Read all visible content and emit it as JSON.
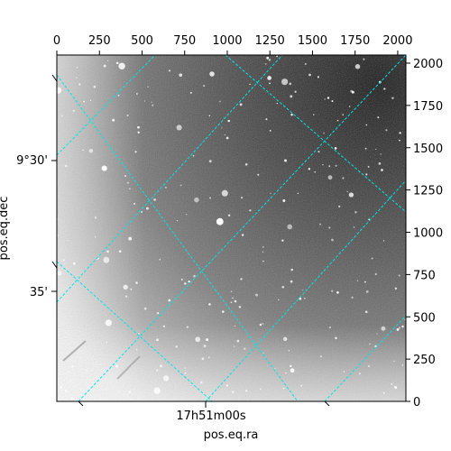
{
  "plot": {
    "top_axis_ticks": [
      "0",
      "250",
      "500",
      "750",
      "1000",
      "1250",
      "1500",
      "1750",
      "2000"
    ],
    "right_axis_ticks": [
      "0",
      "250",
      "500",
      "750",
      "1000",
      "1250",
      "1500",
      "1750",
      "2000"
    ],
    "left_axis_ticks": [
      "9°30'",
      "35'"
    ],
    "bottom_axis_ticks": [
      "17h51m00s"
    ],
    "xlabel": "pos.eq.ra",
    "ylabel": "pos.eq.dec",
    "grid_color": "#00e5e5",
    "image_type": "grayscale astronomical sky image",
    "pixel_range": [
      0,
      2048
    ]
  }
}
